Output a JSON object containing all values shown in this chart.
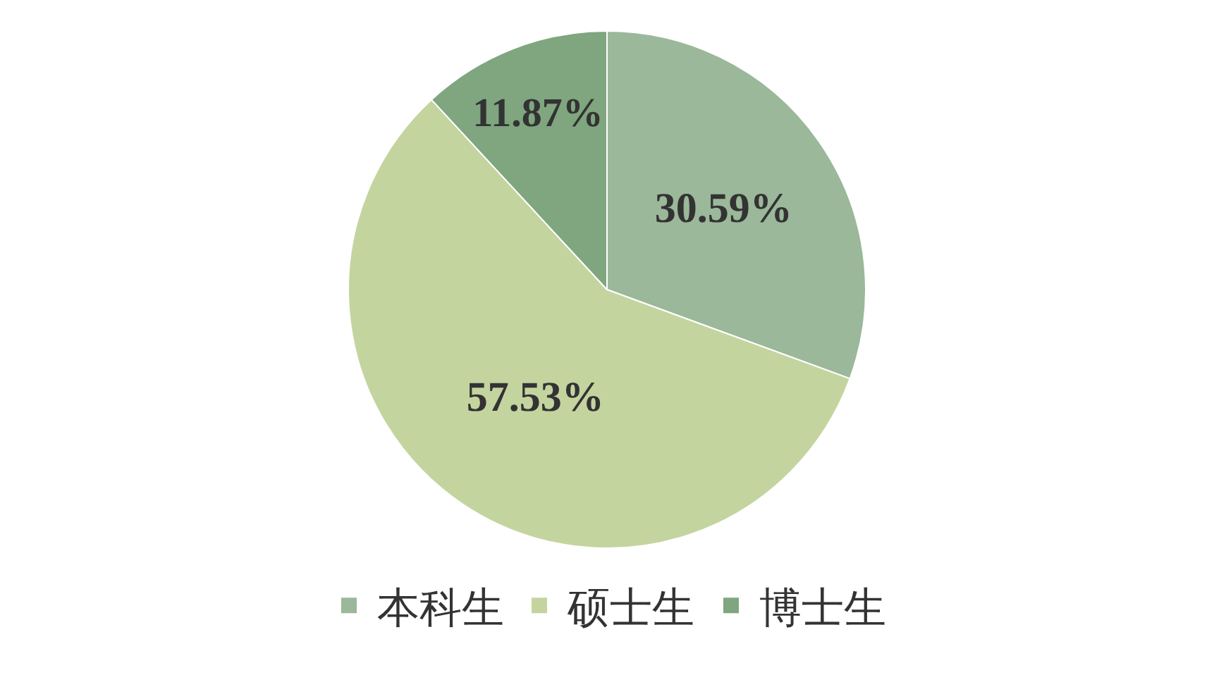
{
  "chart_data": {
    "type": "pie",
    "categories": [
      "本科生",
      "硕士生",
      "博士生"
    ],
    "values": [
      30.59,
      57.53,
      11.87
    ],
    "value_labels": [
      "30.59%",
      "57.53%",
      "11.87%"
    ],
    "colors": [
      "#9bb89a",
      "#c4d49f",
      "#7fa67f"
    ],
    "legend": "bottom"
  }
}
